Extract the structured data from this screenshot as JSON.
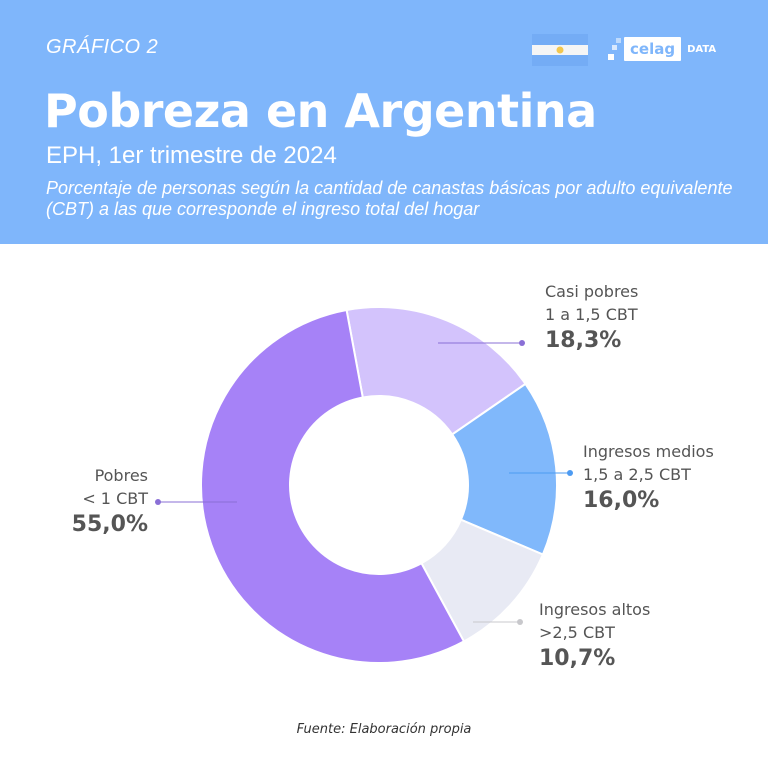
{
  "header": {
    "kicker": "GRÁFICO 2",
    "title": "Pobreza en Argentina",
    "subtitle": "EPH, 1er trimestre de 2024",
    "description": "Porcentaje de personas según la cantidad de canastas básicas por adulto equivalente (CBT) a las que corresponde el ingreso total del hogar",
    "logo": {
      "brand": "celag",
      "suffix": "DATA"
    },
    "flag_icon": "argentina-flag",
    "background_color": "#7fb6fb"
  },
  "chart_data": {
    "type": "pie",
    "donut": true,
    "title": "",
    "slices": [
      {
        "name": "Casi pobres",
        "range": "1 a 1,5 CBT",
        "value": 18.3,
        "label": "18,3%",
        "color": "#d3c3fc",
        "dot_color": "#8a6fd6"
      },
      {
        "name": "Ingresos medios",
        "range": "1,5 a 2,5 CBT",
        "value": 16.0,
        "label": "16,0%",
        "color": "#80b8fb",
        "dot_color": "#4d9bf2"
      },
      {
        "name": "Ingresos altos",
        "range": ">2,5 CBT",
        "value": 10.7,
        "label": "10,7%",
        "color": "#e8eaf4",
        "dot_color": "#c8c8cc"
      },
      {
        "name": "Pobres",
        "range": "< 1 CBT",
        "value": 55.0,
        "label": "55,0%",
        "color": "#a682f7",
        "dot_color": "#8a6fd6"
      }
    ]
  },
  "footer": {
    "source": "Fuente: Elaboración propia"
  }
}
